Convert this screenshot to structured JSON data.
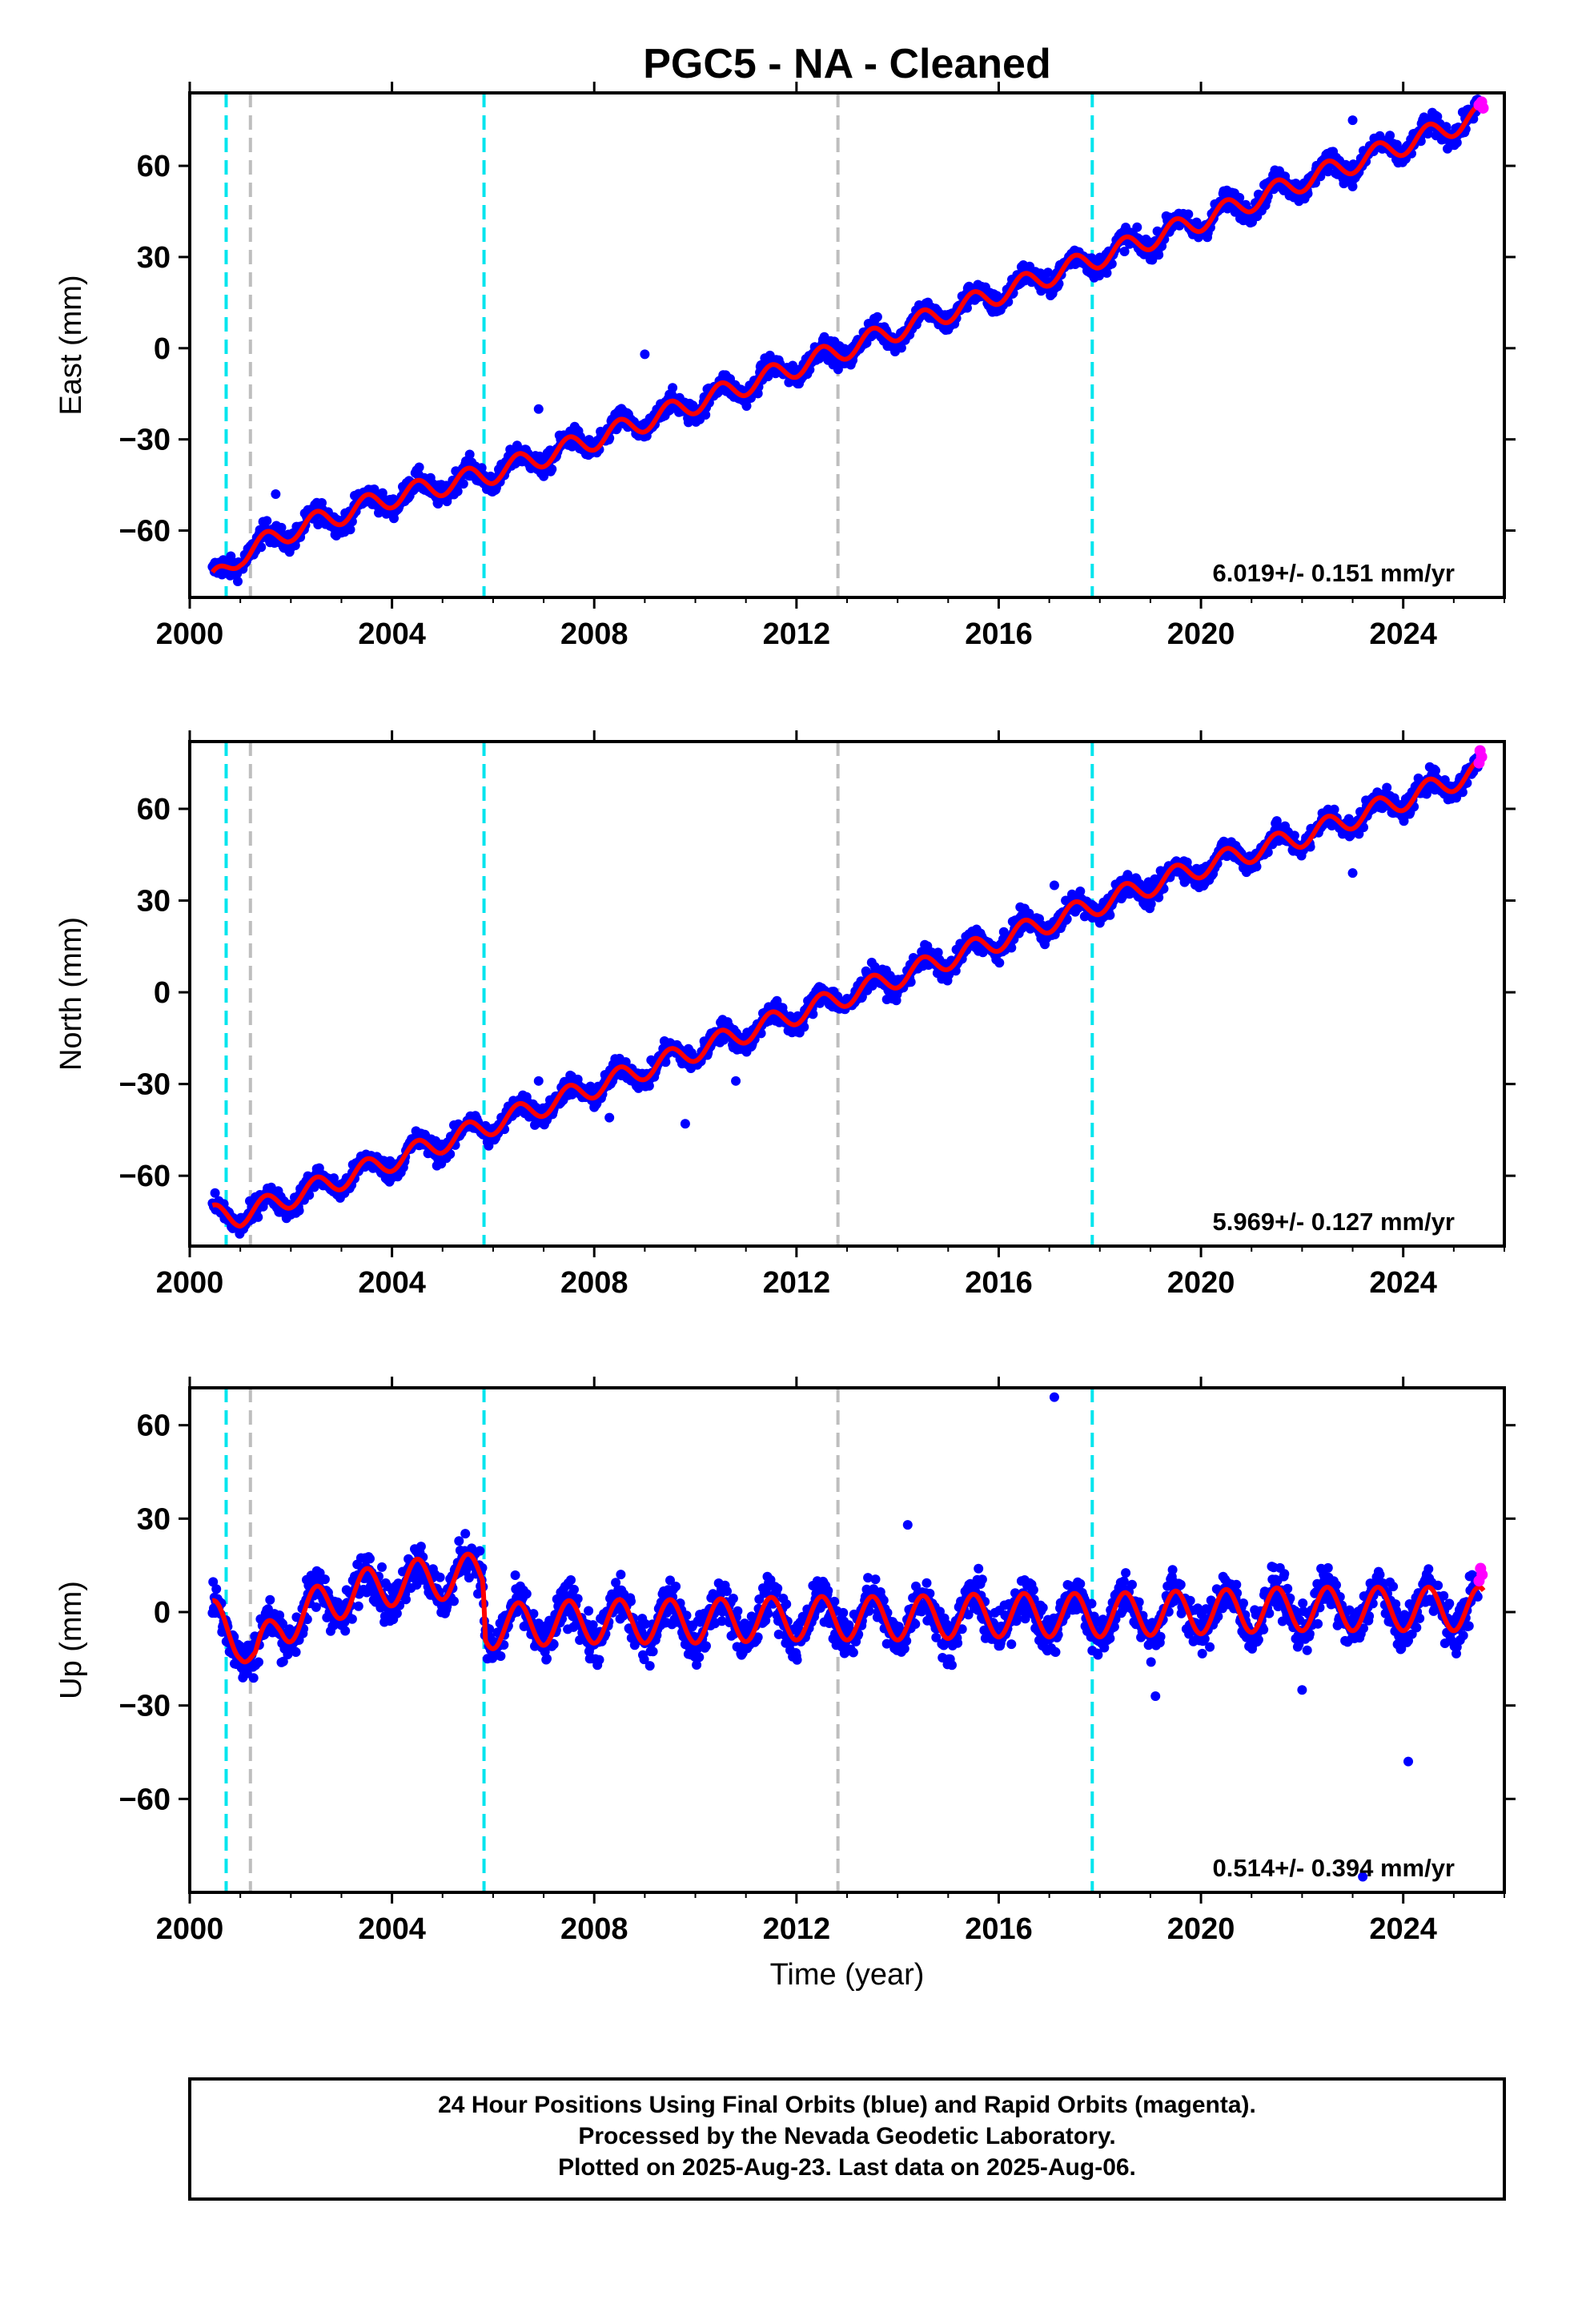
{
  "figure": {
    "title": "PGC5  - NA - Cleaned",
    "xlabel": "Time (year)",
    "caption_lines": [
      "24 Hour Positions Using Final Orbits (blue) and Rapid Orbits (magenta).",
      "Processed by the Nevada Geodetic Laboratory.",
      "Plotted on 2025-Aug-23. Last data on 2025-Aug-06."
    ]
  },
  "colors": {
    "final_points": "#0000ff",
    "rapid_points": "#ff00ff",
    "model_line": "#ff0000",
    "equipment_change": "#00e5ee",
    "other_event": "#bebebe"
  },
  "chart_data": [
    {
      "type": "scatter",
      "ylabel": "East (mm)",
      "rate_text": "6.019+/- 0.151 mm/yr",
      "xlim": [
        2000,
        2026
      ],
      "ylim": [
        -82,
        84
      ],
      "xticks": [
        2000,
        2004,
        2008,
        2012,
        2016,
        2020,
        2024
      ],
      "yticks": [
        -60,
        -30,
        0,
        30,
        60
      ],
      "event_lines": [
        {
          "year": 2000.72,
          "kind": "equipment_change"
        },
        {
          "year": 2001.2,
          "kind": "other_event"
        },
        {
          "year": 2005.82,
          "kind": "equipment_change"
        },
        {
          "year": 2012.82,
          "kind": "other_event"
        },
        {
          "year": 2017.85,
          "kind": "equipment_change"
        }
      ],
      "model_trend": [
        [
          2000.45,
          -77
        ],
        [
          2001.0,
          -68
        ],
        [
          2002.0,
          -60
        ],
        [
          2004.0,
          -49
        ],
        [
          2006.0,
          -41
        ],
        [
          2008.0,
          -30
        ],
        [
          2010.0,
          -18
        ],
        [
          2012.0,
          -6
        ],
        [
          2014.0,
          6
        ],
        [
          2016.0,
          18
        ],
        [
          2018.0,
          30
        ],
        [
          2020.0,
          42
        ],
        [
          2022.0,
          55
        ],
        [
          2024.0,
          67
        ],
        [
          2025.6,
          77
        ]
      ],
      "seasonal_amplitude": 3.5,
      "point_scatter": 2.5,
      "outliers": [
        [
          2009.0,
          -2
        ],
        [
          2006.9,
          -20
        ],
        [
          2001.7,
          -48
        ],
        [
          2023.0,
          75
        ]
      ],
      "rapid_points": [
        [
          2025.5,
          80
        ],
        [
          2025.55,
          81
        ],
        [
          2025.58,
          79
        ]
      ]
    },
    {
      "type": "scatter",
      "ylabel": "North (mm)",
      "rate_text": "5.969+/- 0.127 mm/yr",
      "xlim": [
        2000,
        2026
      ],
      "ylim": [
        -83,
        82
      ],
      "xticks": [
        2000,
        2004,
        2008,
        2012,
        2016,
        2020,
        2024
      ],
      "yticks": [
        -60,
        -30,
        0,
        30,
        60
      ],
      "event_lines": [
        {
          "year": 2000.72,
          "kind": "equipment_change"
        },
        {
          "year": 2001.2,
          "kind": "other_event"
        },
        {
          "year": 2005.82,
          "kind": "equipment_change"
        },
        {
          "year": 2012.82,
          "kind": "other_event"
        },
        {
          "year": 2017.85,
          "kind": "equipment_change"
        }
      ],
      "model_trend": [
        [
          2000.45,
          -73
        ],
        [
          2001.0,
          -73
        ],
        [
          2002.0,
          -67
        ],
        [
          2004.0,
          -55
        ],
        [
          2006.0,
          -43
        ],
        [
          2008.0,
          -31
        ],
        [
          2010.0,
          -19
        ],
        [
          2012.0,
          -7
        ],
        [
          2014.0,
          5
        ],
        [
          2016.0,
          17
        ],
        [
          2018.0,
          29
        ],
        [
          2020.0,
          41
        ],
        [
          2022.0,
          51
        ],
        [
          2024.0,
          63
        ],
        [
          2025.6,
          73
        ]
      ],
      "seasonal_amplitude": 3.5,
      "point_scatter": 2.5,
      "outliers": [
        [
          2010.8,
          -29
        ],
        [
          2017.1,
          35
        ],
        [
          2023.0,
          39
        ],
        [
          2008.3,
          -41
        ],
        [
          2009.8,
          -43
        ],
        [
          2006.9,
          -29
        ]
      ],
      "rapid_points": [
        [
          2025.5,
          75
        ],
        [
          2025.52,
          79
        ],
        [
          2025.55,
          77
        ]
      ]
    },
    {
      "type": "scatter",
      "ylabel": "Up (mm)",
      "rate_text": "0.514+/- 0.394 mm/yr",
      "xlim": [
        2000,
        2026
      ],
      "ylim": [
        -90,
        72
      ],
      "xticks": [
        2000,
        2004,
        2008,
        2012,
        2016,
        2020,
        2024
      ],
      "yticks": [
        -60,
        -30,
        0,
        30,
        60
      ],
      "event_lines": [
        {
          "year": 2000.72,
          "kind": "equipment_change"
        },
        {
          "year": 2001.2,
          "kind": "other_event"
        },
        {
          "year": 2005.82,
          "kind": "equipment_change"
        },
        {
          "year": 2012.82,
          "kind": "other_event"
        },
        {
          "year": 2017.85,
          "kind": "equipment_change"
        }
      ],
      "model_trend": [
        [
          2000.45,
          -3
        ],
        [
          2001.0,
          -8
        ],
        [
          2001.3,
          -15
        ],
        [
          2001.8,
          -4
        ],
        [
          2003.0,
          5
        ],
        [
          2004.0,
          9
        ],
        [
          2005.0,
          11
        ],
        [
          2005.8,
          12
        ],
        [
          2005.85,
          -5
        ],
        [
          2006.5,
          -4
        ],
        [
          2008.0,
          -3
        ],
        [
          2010.0,
          -3
        ],
        [
          2012.0,
          -2
        ],
        [
          2014.0,
          -2
        ],
        [
          2016.0,
          -1
        ],
        [
          2018.0,
          -1
        ],
        [
          2020.0,
          0
        ],
        [
          2022.0,
          1
        ],
        [
          2024.0,
          1
        ],
        [
          2025.6,
          1
        ]
      ],
      "seasonal_amplitude": 7,
      "point_scatter": 5,
      "outliers": [
        [
          2017.1,
          69
        ],
        [
          2024.1,
          -48
        ],
        [
          2019.1,
          -27
        ],
        [
          2022.0,
          -25
        ],
        [
          2014.2,
          28
        ],
        [
          2023.2,
          -85
        ]
      ],
      "rapid_points": [
        [
          2025.5,
          10
        ],
        [
          2025.53,
          14
        ],
        [
          2025.56,
          12
        ]
      ]
    }
  ]
}
